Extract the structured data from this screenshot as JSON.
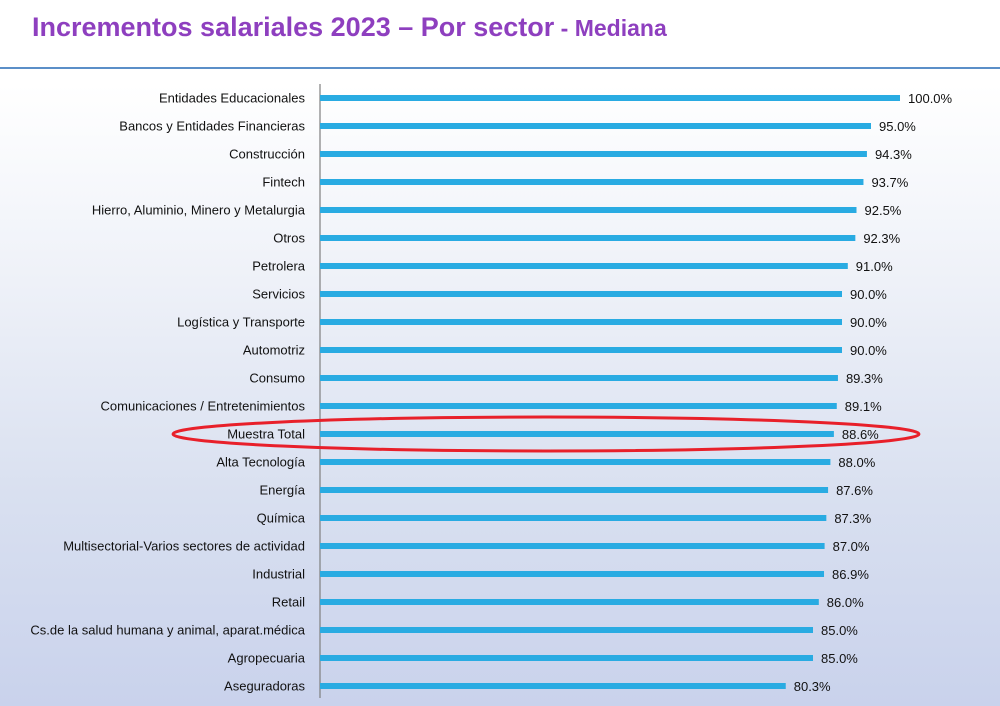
{
  "header": {
    "title": "Incrementos salariales 2023 – Por sector",
    "subtitle": " - Mediana"
  },
  "colors": {
    "title": "#8e3fbf",
    "bar": "#29abe2",
    "highlight": "#e8202a",
    "axis": "#7f7f7f"
  },
  "chart_data": {
    "type": "bar",
    "orientation": "horizontal",
    "title": "Incrementos salariales 2023 – Por sector - Mediana",
    "categories": [
      "Entidades Educacionales",
      "Bancos y Entidades Financieras",
      "Construcción",
      "Fintech",
      "Hierro, Aluminio, Minero y Metalurgia",
      "Otros",
      "Petrolera",
      "Servicios",
      "Logística y Transporte",
      "Automotriz",
      "Consumo",
      "Comunicaciones / Entretenimientos",
      "Muestra Total",
      "Alta Tecnología",
      "Energía",
      "Química",
      "Multisectorial-Varios sectores de actividad",
      "Industrial",
      "Retail",
      "Cs.de la salud humana y animal, aparat.médica",
      "Agropecuaria",
      "Aseguradoras"
    ],
    "values": [
      100.0,
      95.0,
      94.3,
      93.7,
      92.5,
      92.3,
      91.0,
      90.0,
      90.0,
      90.0,
      89.3,
      89.1,
      88.6,
      88.0,
      87.6,
      87.3,
      87.0,
      86.9,
      86.0,
      85.0,
      85.0,
      80.3
    ],
    "value_labels": [
      "100.0%",
      "95.0%",
      "94.3%",
      "93.7%",
      "92.5%",
      "92.3%",
      "91.0%",
      "90.0%",
      "90.0%",
      "90.0%",
      "89.3%",
      "89.1%",
      "88.6%",
      "88.0%",
      "87.6%",
      "87.3%",
      "87.0%",
      "86.9%",
      "86.0%",
      "85.0%",
      "85.0%",
      "80.3%"
    ],
    "highlighted_category": "Muestra Total",
    "xlim": [
      0,
      100
    ],
    "grid": false,
    "legend": "none"
  }
}
